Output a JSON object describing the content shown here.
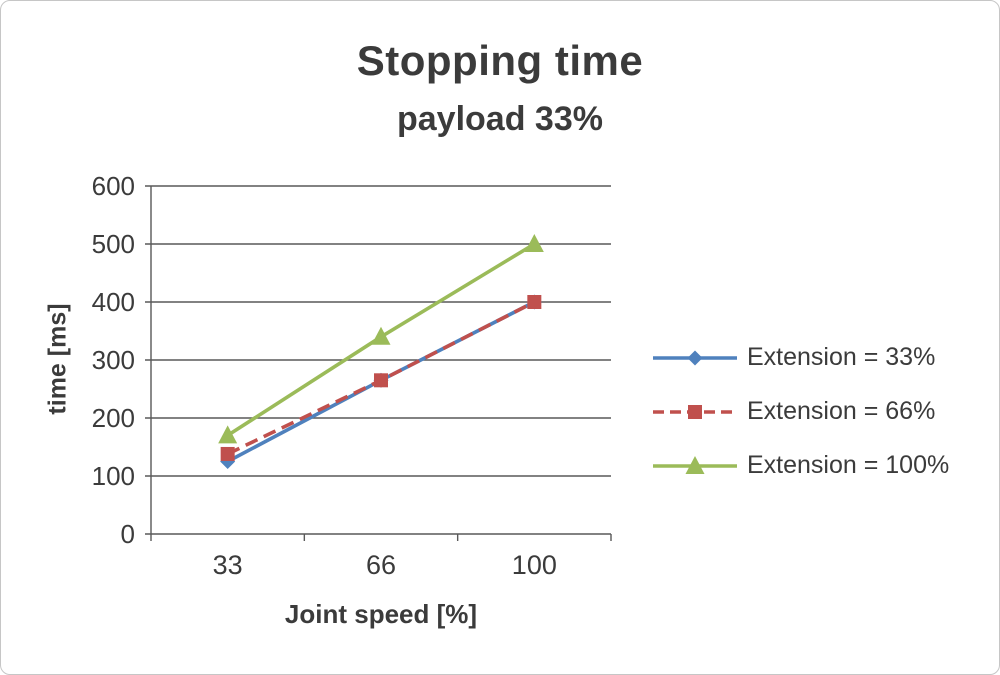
{
  "chart_data": {
    "type": "line",
    "title": "Stopping time",
    "subtitle": "payload 33%",
    "xlabel": "Joint speed [%]",
    "ylabel": "time [ms]",
    "categories": [
      "33",
      "66",
      "100"
    ],
    "ylim": [
      0,
      600
    ],
    "ytick_step": 100,
    "grid": true,
    "legend_position": "right",
    "text_color": "#3b3b3b",
    "axis_color": "#595959",
    "series": [
      {
        "name": "Extension = 33%",
        "values": [
          125,
          265,
          400
        ],
        "color": "#4f81bd",
        "marker": "diamond",
        "line_style": "solid"
      },
      {
        "name": "Extension = 66%",
        "values": [
          138,
          265,
          400
        ],
        "color": "#c0504d",
        "marker": "square",
        "line_style": "dashed"
      },
      {
        "name": "Extension = 100%",
        "values": [
          170,
          340,
          500
        ],
        "color": "#9bbb59",
        "marker": "triangle",
        "line_style": "solid"
      }
    ]
  }
}
